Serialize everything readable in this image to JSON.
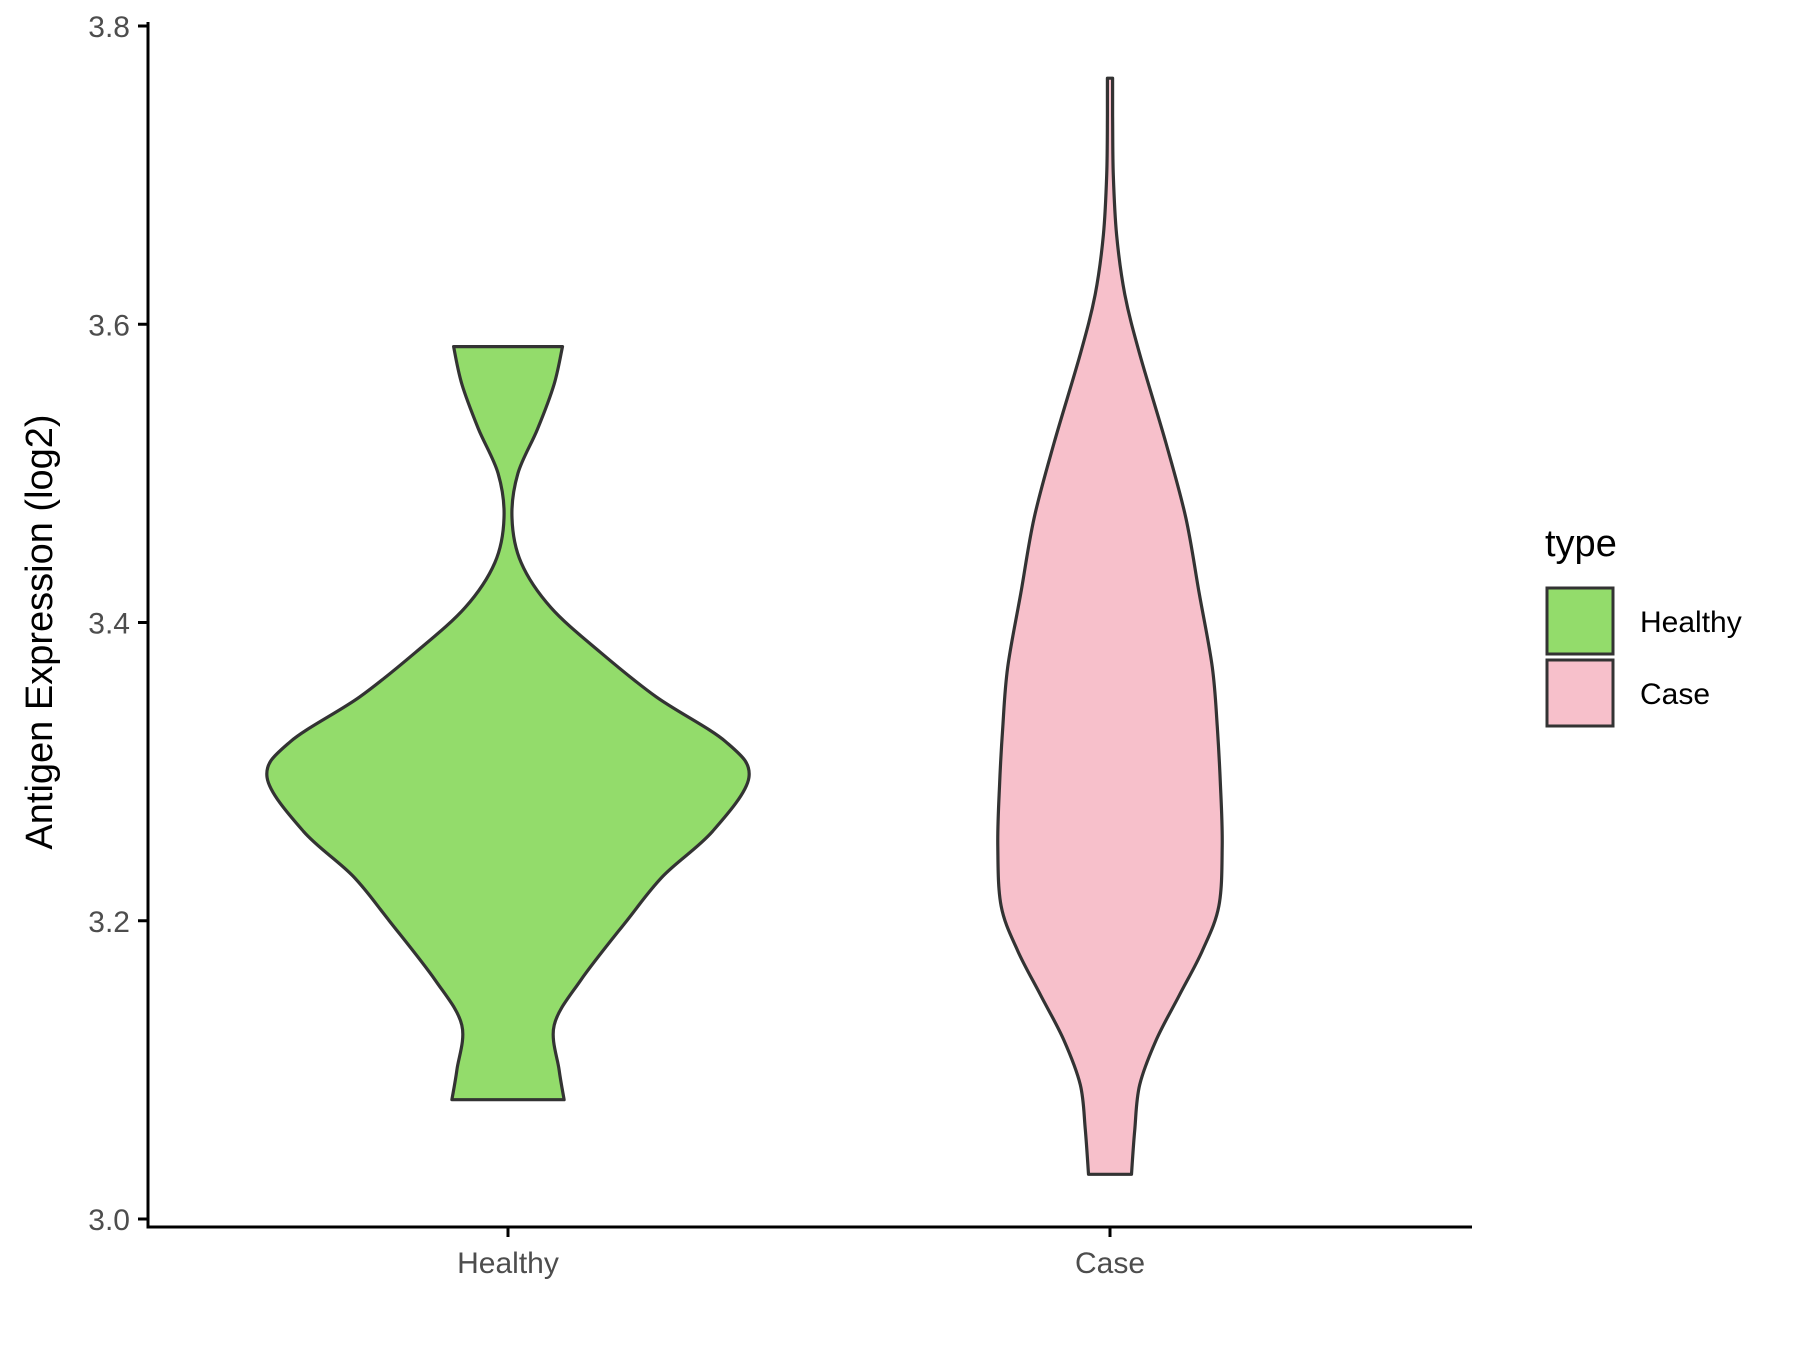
{
  "chart_data": {
    "type": "violin",
    "title": "",
    "xlabel": "",
    "ylabel": "Antigen Expression (log2)",
    "ylim": [
      3.0,
      3.8
    ],
    "yticks": [
      "3.0",
      "3.2",
      "3.4",
      "3.6",
      "3.8"
    ],
    "categories": [
      "Healthy",
      "Case"
    ],
    "grid": false,
    "legend": {
      "title": "type",
      "placement": "right",
      "entries": [
        "Healthy",
        "Case"
      ]
    },
    "series": [
      {
        "name": "Healthy",
        "color": "#93DC6B",
        "min": 3.08,
        "max": 3.585,
        "density_profile": [
          [
            3.08,
            0.17
          ],
          [
            3.1,
            0.155
          ],
          [
            3.13,
            0.14
          ],
          [
            3.16,
            0.22
          ],
          [
            3.2,
            0.36
          ],
          [
            3.23,
            0.47
          ],
          [
            3.26,
            0.62
          ],
          [
            3.296,
            0.73
          ],
          [
            3.32,
            0.66
          ],
          [
            3.35,
            0.45
          ],
          [
            3.38,
            0.28
          ],
          [
            3.41,
            0.13
          ],
          [
            3.44,
            0.04
          ],
          [
            3.47,
            0.012
          ],
          [
            3.5,
            0.03
          ],
          [
            3.53,
            0.09
          ],
          [
            3.56,
            0.14
          ],
          [
            3.585,
            0.165
          ]
        ]
      },
      {
        "name": "Case",
        "color": "#F7C0CB",
        "min": 3.03,
        "max": 3.765,
        "density_profile": [
          [
            3.03,
            0.065
          ],
          [
            3.06,
            0.075
          ],
          [
            3.09,
            0.09
          ],
          [
            3.12,
            0.14
          ],
          [
            3.15,
            0.21
          ],
          [
            3.18,
            0.28
          ],
          [
            3.21,
            0.33
          ],
          [
            3.25,
            0.34
          ],
          [
            3.29,
            0.335
          ],
          [
            3.33,
            0.325
          ],
          [
            3.37,
            0.31
          ],
          [
            3.42,
            0.27
          ],
          [
            3.47,
            0.23
          ],
          [
            3.52,
            0.17
          ],
          [
            3.58,
            0.09
          ],
          [
            3.62,
            0.045
          ],
          [
            3.66,
            0.02
          ],
          [
            3.7,
            0.01
          ],
          [
            3.74,
            0.008
          ],
          [
            3.765,
            0.008
          ]
        ]
      }
    ]
  }
}
